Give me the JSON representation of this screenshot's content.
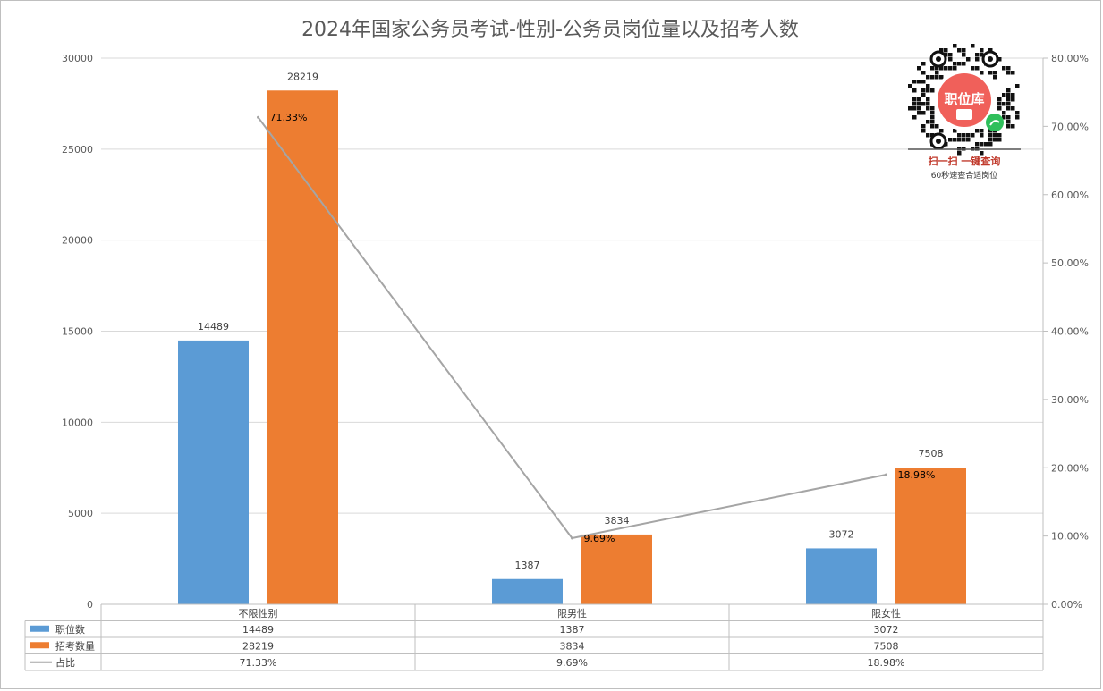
{
  "chart_data": {
    "type": "bar",
    "title": "2024年国家公务员考试-性别-公务员岗位量以及招考人数",
    "categories": [
      "不限性别",
      "限男性",
      "限女性"
    ],
    "series": [
      {
        "name": "职位数",
        "kind": "bar",
        "axis": "left",
        "color": "#5b9bd5",
        "values": [
          14489,
          1387,
          3072
        ],
        "labels": [
          "14489",
          "1387",
          "3072"
        ]
      },
      {
        "name": "招考数量",
        "kind": "bar",
        "axis": "left",
        "color": "#ed7d31",
        "values": [
          28219,
          3834,
          7508
        ],
        "labels": [
          "28219",
          "3834",
          "7508"
        ]
      },
      {
        "name": "占比",
        "kind": "line",
        "axis": "right",
        "color": "#a5a5a5",
        "values": [
          71.33,
          9.69,
          18.98
        ],
        "labels": [
          "71.33%",
          "9.69%",
          "18.98%"
        ]
      }
    ],
    "y_left": {
      "min": 0,
      "max": 30000,
      "ticks": [
        "0",
        "5000",
        "10000",
        "15000",
        "20000",
        "25000",
        "30000"
      ]
    },
    "y_right": {
      "min": 0,
      "max": 80,
      "ticks": [
        "0.00%",
        "10.00%",
        "20.00%",
        "30.00%",
        "40.00%",
        "50.00%",
        "60.00%",
        "70.00%",
        "80.00%"
      ]
    },
    "grid": true,
    "legend": "data-table-bottom"
  },
  "badge": {
    "logo_text": "职位库",
    "cta": "扫一扫 一键查询",
    "sub": "60秒速查合适岗位",
    "accent": "#f0605a",
    "cta_color": "#c0392b"
  }
}
